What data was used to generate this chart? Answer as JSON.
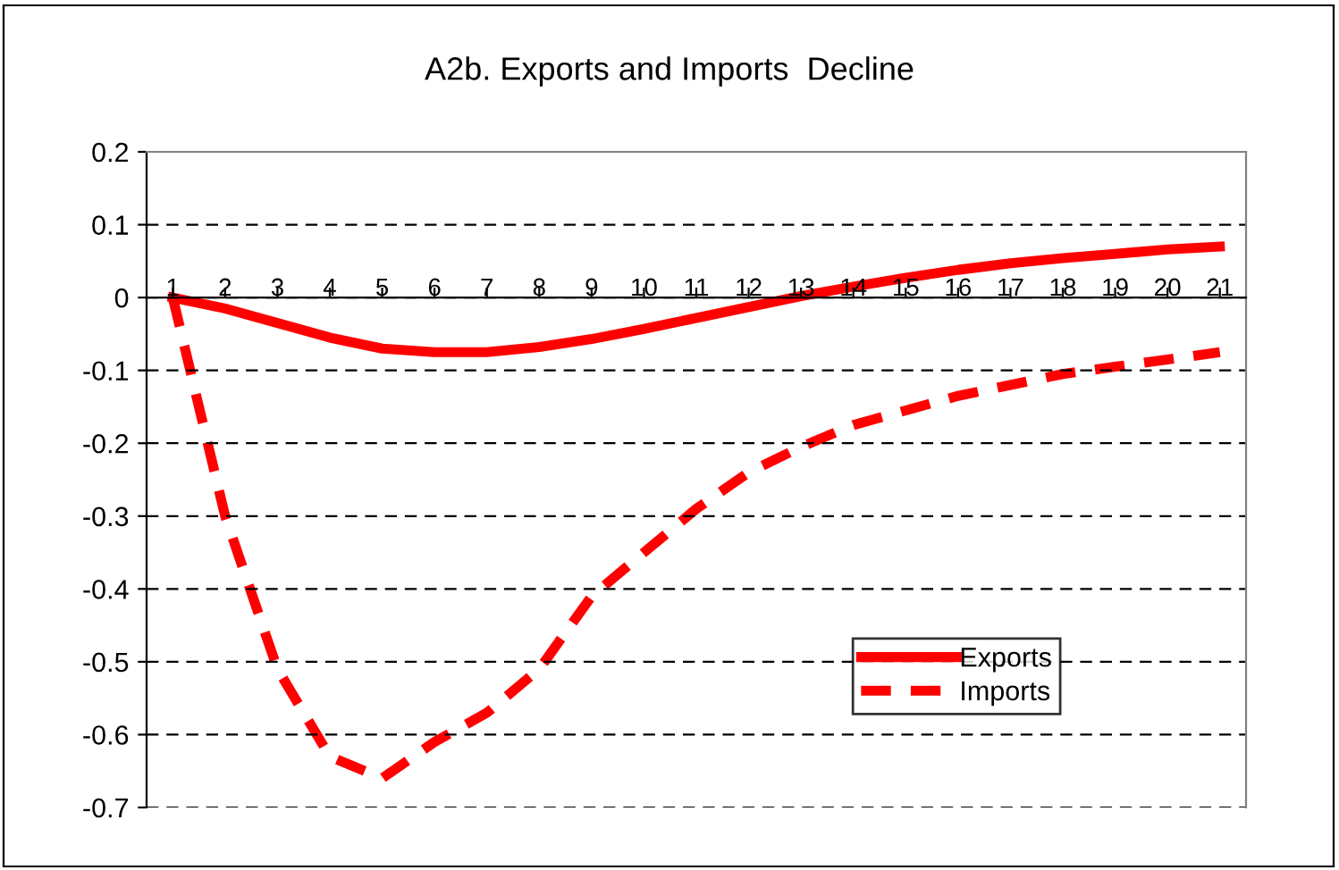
{
  "chart_data": {
    "type": "line",
    "title": "A2b. Exports and Imports  Decline",
    "categories": [
      "1",
      "2",
      "3",
      "4",
      "5",
      "6",
      "7",
      "8",
      "9",
      "10",
      "11",
      "12",
      "13",
      "14",
      "15",
      "16",
      "17",
      "18",
      "19",
      "20",
      "21"
    ],
    "series": [
      {
        "name": "Exports",
        "color": "#ff0000",
        "line_style": "solid",
        "values": [
          0,
          -0.015,
          -0.035,
          -0.055,
          -0.07,
          -0.075,
          -0.075,
          -0.068,
          -0.057,
          -0.043,
          -0.028,
          -0.013,
          0.002,
          0.015,
          0.027,
          0.038,
          0.047,
          0.054,
          0.06,
          0.066,
          0.07
        ]
      },
      {
        "name": "Imports",
        "color": "#ff0000",
        "line_style": "dashed",
        "values": [
          0,
          -0.3,
          -0.51,
          -0.63,
          -0.66,
          -0.61,
          -0.57,
          -0.51,
          -0.41,
          -0.35,
          -0.29,
          -0.24,
          -0.205,
          -0.175,
          -0.155,
          -0.135,
          -0.12,
          -0.105,
          -0.095,
          -0.085,
          -0.075
        ]
      }
    ],
    "ylim": [
      -0.7,
      0.2
    ],
    "yticks": [
      -0.7,
      -0.6,
      -0.5,
      -0.4,
      -0.3,
      -0.2,
      -0.1,
      0,
      0.1,
      0.2
    ],
    "grid": "y",
    "legend": "right",
    "marker": "none"
  }
}
